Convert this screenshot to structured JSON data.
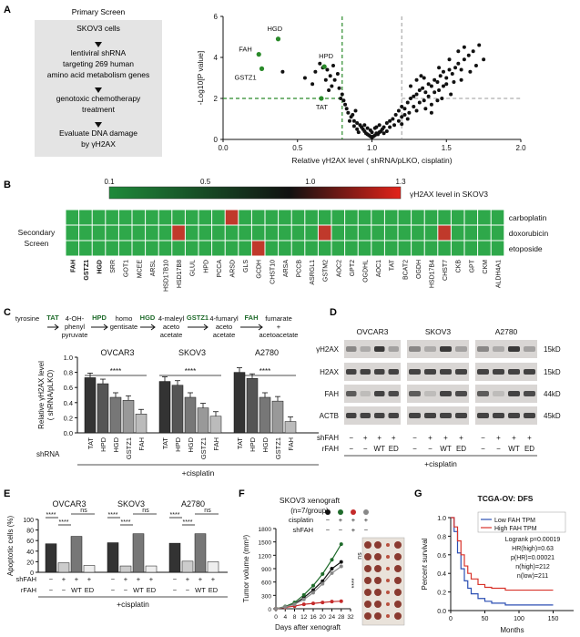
{
  "panel_labels": {
    "a": "A",
    "b": "B",
    "c": "C",
    "d": "D",
    "e": "E",
    "f": "F",
    "g": "G"
  },
  "screen_box": {
    "lines": [
      "Primary Screen",
      "SKOV3 cells",
      "lentiviral shRNA",
      "targeting 269 human",
      "amino acid metabolism genes",
      "genotoxic chemotherapy",
      "treatment",
      "Evaluate DNA damage",
      "by γH2AX"
    ]
  },
  "heatmap": {
    "scale_ticks": [
      "0.1",
      "0.5",
      "1.0",
      "1.3"
    ],
    "scale_label": "γH2AX level in SKOV3",
    "side_label": [
      "Secondary",
      "Screen"
    ],
    "rows": [
      "carboplatin",
      "doxorubicin",
      "etoposide"
    ],
    "genes": [
      "FAH",
      "GSTZ1",
      "HGD",
      "SRR",
      "GOT1",
      "MCEE",
      "ARSL",
      "HSD17B10",
      "HSD17B8",
      "GLUL",
      "HPD",
      "PCCA",
      "ARSD",
      "GLS",
      "GCDH",
      "CHST10",
      "ARSA",
      "PCCB",
      "ASRGL1",
      "GSTM2",
      "AOC2",
      "GPT2",
      "OGDHL",
      "AOC1",
      "TAT",
      "BCAT2",
      "OGDH",
      "HSD17B4",
      "CHST7",
      "CKB",
      "GPT",
      "CKM",
      "ALDH4A1"
    ],
    "red_cells": [
      [
        8,
        1
      ],
      [
        14,
        2
      ],
      [
        19,
        1
      ],
      [
        28,
        1
      ],
      [
        12,
        0
      ]
    ],
    "colors": {
      "low": "#1e8a3a",
      "mid": "#111111",
      "high": "#e2231a"
    }
  },
  "pathway": {
    "metabolites": [
      "tyrosine",
      "4-OH-\nphenyl\npyruvate",
      "homo\ngentisate",
      "4-maleyl\naceto\nacetate",
      "4-fumaryl\naceto\nacetate",
      "fumarate\n+\nacetoacetate"
    ],
    "enzymes": [
      "TAT",
      "HPD",
      "HGD",
      "GSTZ1",
      "FAH"
    ]
  },
  "chart_data": [
    {
      "type": "scatter",
      "panel": "A",
      "xlabel": "Relative γH2AX level ( shRNA/pLKO, cisplatin)",
      "ylabel": "-Log10[P value]",
      "xlim": [
        0.0,
        2.0
      ],
      "ylim": [
        0,
        6
      ],
      "xticks": [
        "0.0",
        "0.5",
        "1.0",
        "1.5",
        "2.0"
      ],
      "yticks": [
        "0",
        "2",
        "4",
        "6"
      ],
      "highlighted": [
        {
          "label": "HGD",
          "x": 0.37,
          "y": 4.9
        },
        {
          "label": "FAH",
          "x": 0.24,
          "y": 4.15
        },
        {
          "label": "GSTZ1",
          "x": 0.26,
          "y": 3.45
        },
        {
          "label": "HPD",
          "x": 0.68,
          "y": 3.55
        },
        {
          "label": "TAT",
          "x": 0.66,
          "y": 2.0
        }
      ],
      "points": [
        [
          0.4,
          3.3
        ],
        [
          0.55,
          3.0
        ],
        [
          0.6,
          2.7
        ],
        [
          0.62,
          3.3
        ],
        [
          0.65,
          3.7
        ],
        [
          0.67,
          3.5
        ],
        [
          0.7,
          3.4
        ],
        [
          0.72,
          3.1
        ],
        [
          0.74,
          3.6
        ],
        [
          0.75,
          2.9
        ],
        [
          0.77,
          3.2
        ],
        [
          0.73,
          2.6
        ],
        [
          0.69,
          2.9
        ],
        [
          0.71,
          2.4
        ],
        [
          0.78,
          2.5
        ],
        [
          0.8,
          2.2
        ],
        [
          0.82,
          1.7
        ],
        [
          0.84,
          1.3
        ],
        [
          0.86,
          1.1
        ],
        [
          0.88,
          0.9
        ],
        [
          0.9,
          0.8
        ],
        [
          0.92,
          0.7
        ],
        [
          0.93,
          0.6
        ],
        [
          0.94,
          0.5
        ],
        [
          0.95,
          0.4
        ],
        [
          0.96,
          0.3
        ],
        [
          0.97,
          0.25
        ],
        [
          0.98,
          0.2
        ],
        [
          0.99,
          0.15
        ],
        [
          1.0,
          0.1
        ],
        [
          1.01,
          0.15
        ],
        [
          1.02,
          0.2
        ],
        [
          1.03,
          0.3
        ],
        [
          1.04,
          0.25
        ],
        [
          1.05,
          0.35
        ],
        [
          1.06,
          0.4
        ],
        [
          0.9,
          0.5
        ],
        [
          0.88,
          0.65
        ],
        [
          0.91,
          0.35
        ],
        [
          0.95,
          0.7
        ],
        [
          0.97,
          0.55
        ],
        [
          0.99,
          0.45
        ],
        [
          1.0,
          0.35
        ],
        [
          1.02,
          0.55
        ],
        [
          1.03,
          0.6
        ],
        [
          1.05,
          0.7
        ],
        [
          1.07,
          0.5
        ],
        [
          1.08,
          0.6
        ],
        [
          1.1,
          0.8
        ],
        [
          1.12,
          0.9
        ],
        [
          1.14,
          1.0
        ],
        [
          1.16,
          1.2
        ],
        [
          1.18,
          1.4
        ],
        [
          1.2,
          1.6
        ],
        [
          1.22,
          1.5
        ],
        [
          1.24,
          1.8
        ],
        [
          1.26,
          2.0
        ],
        [
          1.28,
          2.1
        ],
        [
          1.3,
          2.2
        ],
        [
          1.32,
          2.4
        ],
        [
          1.34,
          2.5
        ],
        [
          1.36,
          2.3
        ],
        [
          1.38,
          2.7
        ],
        [
          1.4,
          2.6
        ],
        [
          1.42,
          2.9
        ],
        [
          1.44,
          2.8
        ],
        [
          1.46,
          3.1
        ],
        [
          1.48,
          3.3
        ],
        [
          1.5,
          3.0
        ],
        [
          1.52,
          3.4
        ],
        [
          1.54,
          3.2
        ],
        [
          1.56,
          3.5
        ],
        [
          1.58,
          3.7
        ],
        [
          1.6,
          3.4
        ],
        [
          1.62,
          3.9
        ],
        [
          1.65,
          4.1
        ],
        [
          1.68,
          4.3
        ],
        [
          1.72,
          4.6
        ],
        [
          1.28,
          1.6
        ],
        [
          1.3,
          1.4
        ],
        [
          1.32,
          1.8
        ],
        [
          1.35,
          1.9
        ],
        [
          1.38,
          2.1
        ],
        [
          1.4,
          1.7
        ],
        [
          1.42,
          2.3
        ],
        [
          1.45,
          2.4
        ],
        [
          1.48,
          2.6
        ],
        [
          1.5,
          2.7
        ],
        [
          1.55,
          2.8
        ],
        [
          1.2,
          1.1
        ],
        [
          1.18,
          0.9
        ],
        [
          1.15,
          0.7
        ],
        [
          1.22,
          1.2
        ],
        [
          1.25,
          1.3
        ],
        [
          1.12,
          0.6
        ],
        [
          1.1,
          0.4
        ],
        [
          1.08,
          0.3
        ],
        [
          1.35,
          3.0
        ],
        [
          1.45,
          3.5
        ],
        [
          1.52,
          3.9
        ],
        [
          1.58,
          4.3
        ],
        [
          1.62,
          4.5
        ],
        [
          1.75,
          3.9
        ],
        [
          1.26,
          2.6
        ],
        [
          1.3,
          2.9
        ],
        [
          1.33,
          3.1
        ],
        [
          1.24,
          1.0
        ],
        [
          1.2,
          0.75
        ],
        [
          1.36,
          1.5
        ],
        [
          1.4,
          1.3
        ],
        [
          1.44,
          1.9
        ],
        [
          1.47,
          2.0
        ],
        [
          1.53,
          2.2
        ],
        [
          1.6,
          2.9
        ],
        [
          1.66,
          3.3
        ],
        [
          1.7,
          3.6
        ],
        [
          0.85,
          0.9
        ],
        [
          0.87,
          1.2
        ],
        [
          0.89,
          1.4
        ],
        [
          0.81,
          1.9
        ],
        [
          0.79,
          2.0
        ],
        [
          0.83,
          1.5
        ]
      ],
      "ref_lines": {
        "x": [
          0.8,
          1.2
        ],
        "y": 2
      }
    },
    {
      "type": "bar",
      "panel": "C",
      "ylabel": "Relative γH2AX level\n( shRNA/pLKO)",
      "ylim": [
        0,
        1.0
      ],
      "yticks": [
        "0.0",
        "0.2",
        "0.4",
        "0.6",
        "0.8",
        "1.0"
      ],
      "xlabel_row": "shRNA",
      "footer": "+cisplatin",
      "significance": "****",
      "categories": [
        "TAT",
        "HPD",
        "HGD",
        "GSTZ1",
        "FAH"
      ],
      "series": [
        {
          "name": "OVCAR3",
          "values": [
            0.73,
            0.65,
            0.47,
            0.43,
            0.25
          ]
        },
        {
          "name": "SKOV3",
          "values": [
            0.68,
            0.63,
            0.47,
            0.33,
            0.22
          ]
        },
        {
          "name": "A2780",
          "values": [
            0.8,
            0.72,
            0.47,
            0.42,
            0.15
          ]
        }
      ]
    },
    {
      "type": "bar",
      "panel": "E",
      "ylabel": "Apoptotic cells (%)",
      "ylim": [
        0,
        100
      ],
      "yticks": [
        "0",
        "20",
        "40",
        "60",
        "80",
        "100"
      ],
      "footer": "+cisplatin",
      "row_labels": [
        "shFAH",
        "rFAH"
      ],
      "shFAH_row": [
        "−",
        "+",
        "+",
        "+"
      ],
      "rFAH_row": [
        "−",
        "−",
        "WT",
        "ED"
      ],
      "sig": [
        "****",
        "****",
        "ns"
      ],
      "series": [
        {
          "name": "OVCAR3",
          "values": [
            54,
            18,
            68,
            13
          ]
        },
        {
          "name": "SKOV3",
          "values": [
            56,
            12,
            73,
            12
          ]
        },
        {
          "name": "A2780",
          "values": [
            55,
            21,
            73,
            20
          ]
        }
      ]
    },
    {
      "type": "line",
      "panel": "F",
      "title": "SKOV3 xenograft",
      "subtitle": "(n=7/group)",
      "xlabel": "Days after xenograft",
      "ylabel": "Tumor volume (mm³)",
      "xlim": [
        0,
        32
      ],
      "ylim": [
        0,
        1800
      ],
      "xticks": [
        "0",
        "4",
        "8",
        "12",
        "16",
        "20",
        "24",
        "28",
        "32"
      ],
      "yticks": [
        "0",
        "300",
        "600",
        "900",
        "1200",
        "1500",
        "1800"
      ],
      "x": [
        0,
        4,
        8,
        12,
        16,
        20,
        24,
        28
      ],
      "legend_rows": {
        "cisplatin": [
          "−",
          "+",
          "+",
          "+"
        ],
        "shFAH": [
          "−",
          "−",
          "+",
          "−"
        ]
      },
      "series": [
        {
          "color": "#111111",
          "values": [
            0,
            40,
            110,
            250,
            420,
            620,
            900,
            1050
          ]
        },
        {
          "color": "#1f6b2b",
          "values": [
            0,
            50,
            140,
            310,
            520,
            780,
            1100,
            1450
          ]
        },
        {
          "color": "#c42a2a",
          "values": [
            0,
            30,
            60,
            100,
            120,
            140,
            160,
            170
          ]
        },
        {
          "color": "#888888",
          "values": [
            0,
            40,
            100,
            210,
            360,
            560,
            800,
            950
          ]
        }
      ],
      "sig": [
        "****",
        "ns"
      ]
    },
    {
      "type": "line",
      "panel": "G",
      "title": "TCGA-OV: DFS",
      "ylabel": "Percent survival",
      "xlabel": "Months",
      "xlim": [
        0,
        180
      ],
      "ylim": [
        0,
        1.0
      ],
      "xticks": [
        "0",
        "50",
        "100",
        "150"
      ],
      "yticks": [
        "0.0",
        "0.2",
        "0.4",
        "0.6",
        "0.8",
        "1.0"
      ],
      "series": [
        {
          "name": "Low FAH TPM",
          "color": "#2b4fb3",
          "x": [
            0,
            5,
            10,
            15,
            20,
            25,
            30,
            40,
            50,
            60,
            80,
            100,
            150
          ],
          "values": [
            1.0,
            0.85,
            0.62,
            0.45,
            0.32,
            0.24,
            0.18,
            0.13,
            0.1,
            0.08,
            0.06,
            0.06,
            0.06
          ]
        },
        {
          "name": "High FAH TPM",
          "color": "#d8332a",
          "x": [
            0,
            5,
            10,
            15,
            20,
            25,
            30,
            40,
            50,
            60,
            80,
            100,
            150
          ],
          "values": [
            1.0,
            0.9,
            0.75,
            0.6,
            0.48,
            0.4,
            0.34,
            0.28,
            0.25,
            0.24,
            0.22,
            0.22,
            0.22
          ]
        }
      ],
      "stats": [
        "Logrank p=0.00019",
        "HR(high)=0.63",
        "p(HR)=0.00021",
        "n(high)=212",
        "n(low)=211"
      ]
    }
  ],
  "western": {
    "cells": [
      "OVCAR3",
      "SKOV3",
      "A2780"
    ],
    "rows": [
      "γH2AX",
      "H2AX",
      "FAH",
      "ACTB"
    ],
    "sizes": [
      "15kD",
      "15kD",
      "44kD",
      "45kD"
    ],
    "shFAH_label": "shFAH",
    "rFAH_label": "rFAH",
    "shFAH_row": [
      "−",
      "+",
      "+",
      "+"
    ],
    "rFAH_row": [
      "−",
      "−",
      "WT",
      "ED"
    ],
    "footer": "+cisplatin"
  }
}
